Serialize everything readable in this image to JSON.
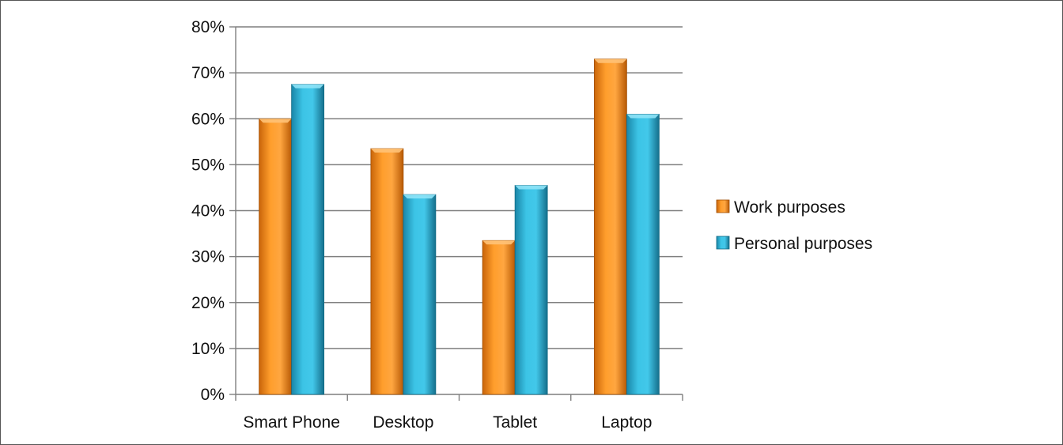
{
  "chart_data": {
    "type": "bar",
    "categories": [
      "Smart Phone",
      "Desktop",
      "Tablet",
      "Laptop"
    ],
    "series": [
      {
        "name": "Work purposes",
        "values": [
          60,
          53.5,
          33.5,
          73
        ],
        "color": "#f7941d"
      },
      {
        "name": "Personal purposes",
        "values": [
          67.5,
          43.5,
          45.5,
          61
        ],
        "color": "#2fb3d3"
      }
    ],
    "ylim": [
      0,
      80
    ],
    "yticks": [
      0,
      10,
      20,
      30,
      40,
      50,
      60,
      70,
      80
    ],
    "ytick_labels": [
      "0%",
      "10%",
      "20%",
      "30%",
      "40%",
      "50%",
      "60%",
      "70%",
      "80%"
    ],
    "grid": true,
    "legend_position": "right",
    "title": "",
    "xlabel": "",
    "ylabel": ""
  }
}
